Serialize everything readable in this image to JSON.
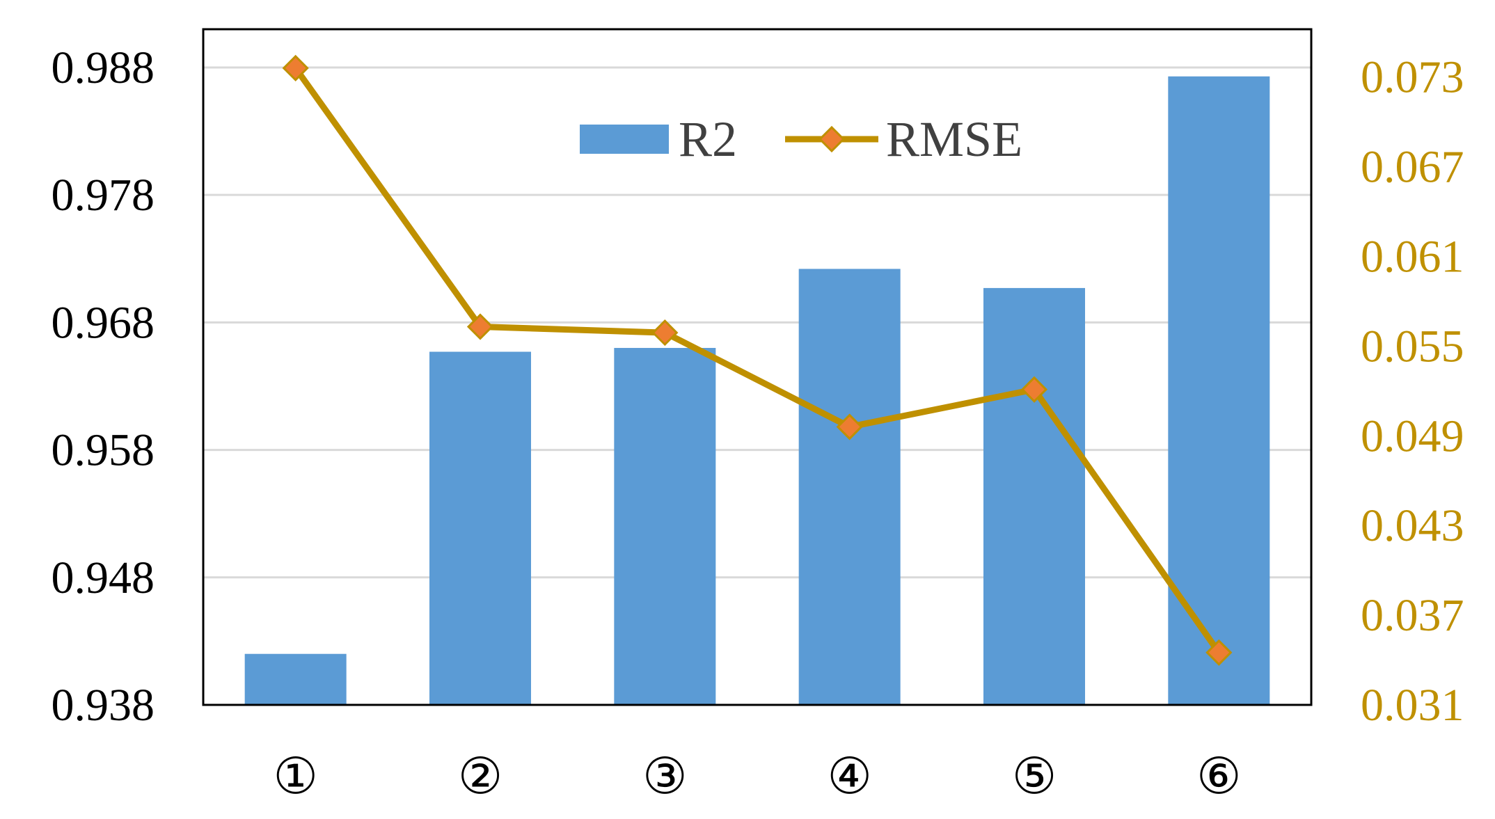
{
  "chart_data": {
    "type": "bar",
    "title": "",
    "xlabel": "",
    "ylabel": "",
    "categories": [
      "①",
      "②",
      "③",
      "④",
      "⑤",
      "⑥"
    ],
    "series": [
      {
        "name": "R2",
        "type": "bar",
        "axis": "left",
        "values": [
          0.942,
          0.9657,
          0.966,
          0.9722,
          0.9707,
          0.9873
        ]
      },
      {
        "name": "RMSE",
        "type": "line",
        "axis": "right",
        "values": [
          0.0736,
          0.0563,
          0.0559,
          0.0496,
          0.0521,
          0.0345
        ]
      }
    ],
    "y_left": {
      "range": [
        0.938,
        0.991
      ],
      "ticks": [
        "0.938",
        "0.948",
        "0.958",
        "0.968",
        "0.978",
        "0.988"
      ]
    },
    "y_right": {
      "range": [
        0.031,
        0.0762
      ],
      "ticks": [
        "0.031",
        "0.037",
        "0.043",
        "0.049",
        "0.055",
        "0.061",
        "0.067",
        "0.073"
      ]
    },
    "grid": true,
    "legend": "top-center",
    "colors": {
      "bar": "#5b9bd5",
      "line": "#bf9000",
      "marker_fill": "#ed7d31",
      "right_axis_text": "#bf9000",
      "gridline": "#d9d9d9"
    }
  }
}
